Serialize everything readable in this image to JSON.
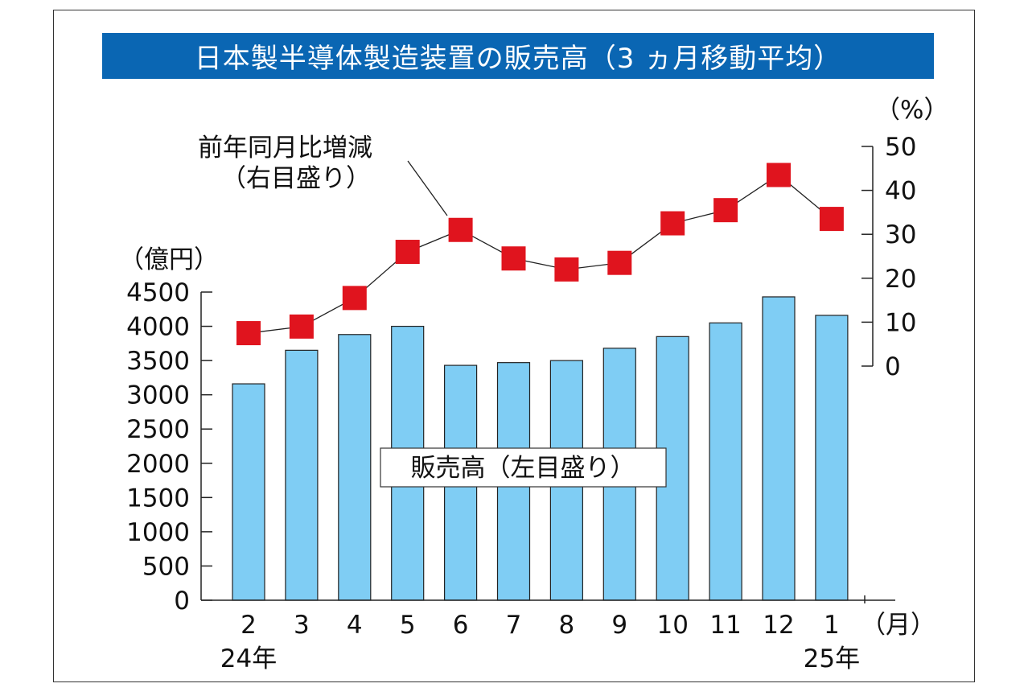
{
  "colors": {
    "title_bg": "#0a66b3",
    "title_text": "#ffffff",
    "bar_fill": "#7fcdf4",
    "bar_stroke": "#222222",
    "marker_fill": "#e0141e",
    "line": "#222222"
  },
  "chart_data": {
    "type": "bar",
    "title": "日本製半導体製造装置の販売高（3 ヵ月移動平均）",
    "categories": [
      "2",
      "3",
      "4",
      "5",
      "6",
      "7",
      "8",
      "9",
      "10",
      "11",
      "12",
      "1"
    ],
    "x_unit": "（月）",
    "year_labels": [
      {
        "category_index": 0,
        "label": "24年"
      },
      {
        "category_index": 11,
        "label": "25年"
      }
    ],
    "left_axis": {
      "unit": "（億円）",
      "ylim": [
        0,
        4500
      ],
      "ticks": [
        0,
        500,
        1000,
        1500,
        2000,
        2500,
        3000,
        3500,
        4000,
        4500
      ],
      "tick_labels": [
        "0",
        "500",
        "1000",
        "1500",
        "2000",
        "2500",
        "3000",
        "3500",
        "4000",
        "4500"
      ]
    },
    "right_axis": {
      "unit": "（%）",
      "ylim": [
        0,
        50
      ],
      "ticks": [
        0,
        10,
        20,
        30,
        40,
        50
      ],
      "tick_labels": [
        "0",
        "10",
        "20",
        "30",
        "40",
        "50"
      ]
    },
    "series": [
      {
        "name": "販売高（左目盛り）",
        "type": "bar",
        "axis": "left",
        "values": [
          3160,
          3650,
          3880,
          4000,
          3430,
          3470,
          3500,
          3680,
          3850,
          4050,
          4430,
          4160
        ]
      },
      {
        "name": "前年同月比増減（右目盛り）",
        "name_lines": [
          "前年同月比増減",
          "（右目盛り）"
        ],
        "type": "line",
        "axis": "right",
        "values": [
          7.5,
          9,
          15.5,
          26,
          31,
          24.5,
          22,
          23.5,
          32.5,
          35.5,
          43.5,
          33.5
        ]
      }
    ],
    "grid": false
  }
}
